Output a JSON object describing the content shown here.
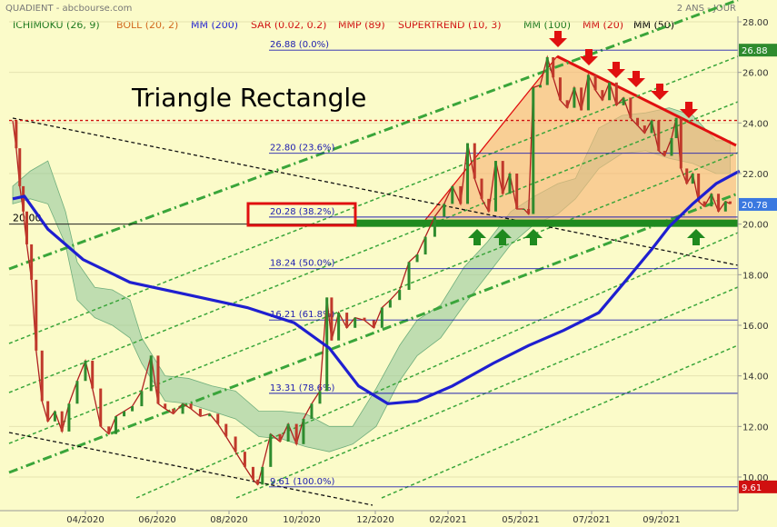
{
  "header": {
    "source": "QUADIENT - abcbourse.com",
    "period": "2 ANS - JOUR"
  },
  "indicators": [
    {
      "label": "ICHIMOKU (26, 9)",
      "color": "#1f7a1f"
    },
    {
      "label": "BOLL (20, 2)",
      "color": "#d2691e"
    },
    {
      "label": "MM (200)",
      "color": "#1f1fd0"
    },
    {
      "label": "SAR (0.02, 0.2)",
      "color": "#d01010"
    },
    {
      "label": "MMP (89)",
      "color": "#d01010"
    },
    {
      "label": "SUPERTREND (10, 3)",
      "color": "#d01010"
    },
    {
      "label": "MM (100)",
      "color": "#1f7a1f"
    },
    {
      "label": "MM (20)",
      "color": "#d01010"
    },
    {
      "label": "MM (50)",
      "color": "#000000"
    }
  ],
  "annotation_title": "Triangle Rectangle",
  "chart_data": {
    "type": "line",
    "x_ticks": [
      "04/2020",
      "06/2020",
      "08/2020",
      "10/2020",
      "12/2020",
      "02/2021",
      "05/2021",
      "07/2021",
      "09/2021"
    ],
    "y_ticks": [
      "10.00",
      "12.00",
      "14.00",
      "16.00",
      "18.00",
      "20.00",
      "22.00",
      "24.00",
      "26.00",
      "28.00"
    ],
    "ylim": [
      9.3,
      28.3
    ],
    "fibonacci_levels": [
      {
        "value": 26.88,
        "label": "26.88  (0.0%)"
      },
      {
        "value": 22.8,
        "label": "22.80  (23.6%)"
      },
      {
        "value": 20.28,
        "label": "20.28  (38.2%)"
      },
      {
        "value": 18.24,
        "label": "18.24  (50.0%)"
      },
      {
        "value": 16.21,
        "label": "16.21  (61.8%)"
      },
      {
        "value": 13.31,
        "label": "13.31  (78.6%)"
      },
      {
        "value": 9.61,
        "label": "9.61  (100.0%)"
      }
    ],
    "price_tags": [
      {
        "value": 26.88,
        "label": "26.88",
        "color": "#2e8b2e"
      },
      {
        "value": 20.78,
        "label": "20.78",
        "color": "#3a78e0"
      },
      {
        "value": 9.61,
        "label": "9.61",
        "color": "#d01010"
      }
    ],
    "support_level": {
      "value": 20.0,
      "label": "20.00"
    },
    "resistance_level": 24.1,
    "price_series": [
      [
        0,
        24.1
      ],
      [
        3,
        23.0
      ],
      [
        6,
        21.5
      ],
      [
        9,
        20.5
      ],
      [
        12,
        19.2
      ],
      [
        16,
        17.8
      ],
      [
        20,
        15.0
      ],
      [
        25,
        13.0
      ],
      [
        30,
        12.2
      ],
      [
        36,
        12.6
      ],
      [
        42,
        11.8
      ],
      [
        48,
        12.9
      ],
      [
        55,
        13.8
      ],
      [
        62,
        14.6
      ],
      [
        68,
        13.5
      ],
      [
        75,
        12.0
      ],
      [
        82,
        11.7
      ],
      [
        88,
        12.4
      ],
      [
        95,
        12.6
      ],
      [
        102,
        12.8
      ],
      [
        110,
        13.4
      ],
      [
        118,
        14.8
      ],
      [
        124,
        12.9
      ],
      [
        130,
        12.7
      ],
      [
        137,
        12.5
      ],
      [
        145,
        12.9
      ],
      [
        152,
        12.7
      ],
      [
        160,
        12.4
      ],
      [
        168,
        12.5
      ],
      [
        175,
        12.1
      ],
      [
        182,
        11.6
      ],
      [
        190,
        11.0
      ],
      [
        198,
        10.4
      ],
      [
        205,
        9.9
      ],
      [
        209,
        9.7
      ],
      [
        213,
        10.4
      ],
      [
        220,
        11.7
      ],
      [
        228,
        11.4
      ],
      [
        235,
        12.1
      ],
      [
        242,
        11.3
      ],
      [
        248,
        12.3
      ],
      [
        255,
        12.9
      ],
      [
        262,
        13.4
      ],
      [
        268,
        17.1
      ],
      [
        272,
        15.4
      ],
      [
        278,
        16.5
      ],
      [
        285,
        15.9
      ],
      [
        292,
        16.3
      ],
      [
        300,
        16.2
      ],
      [
        308,
        15.9
      ],
      [
        315,
        16.7
      ],
      [
        322,
        17.0
      ],
      [
        330,
        17.4
      ],
      [
        338,
        18.5
      ],
      [
        345,
        18.8
      ],
      [
        352,
        19.5
      ],
      [
        360,
        20.3
      ],
      [
        368,
        20.8
      ],
      [
        375,
        21.5
      ],
      [
        382,
        20.8
      ],
      [
        388,
        23.2
      ],
      [
        394,
        21.8
      ],
      [
        400,
        21.0
      ],
      [
        406,
        20.5
      ],
      [
        412,
        22.5
      ],
      [
        418,
        21.2
      ],
      [
        424,
        22.0
      ],
      [
        430,
        20.6
      ],
      [
        436,
        20.6
      ],
      [
        440,
        20.4
      ],
      [
        444,
        25.4
      ],
      [
        450,
        25.5
      ],
      [
        456,
        26.6
      ],
      [
        461,
        25.8
      ],
      [
        467,
        24.9
      ],
      [
        473,
        24.6
      ],
      [
        479,
        25.4
      ],
      [
        485,
        24.5
      ],
      [
        491,
        25.9
      ],
      [
        497,
        25.3
      ],
      [
        503,
        24.9
      ],
      [
        509,
        25.6
      ],
      [
        515,
        24.7
      ],
      [
        521,
        25.0
      ],
      [
        527,
        24.2
      ],
      [
        533,
        23.9
      ],
      [
        539,
        23.6
      ],
      [
        545,
        24.1
      ],
      [
        551,
        22.9
      ],
      [
        556,
        22.7
      ],
      [
        562,
        23.4
      ],
      [
        566,
        24.2
      ],
      [
        570,
        22.2
      ],
      [
        575,
        21.6
      ],
      [
        580,
        22.0
      ],
      [
        585,
        20.9
      ],
      [
        590,
        20.7
      ],
      [
        596,
        21.2
      ],
      [
        602,
        20.5
      ],
      [
        608,
        20.9
      ],
      [
        612,
        20.8
      ]
    ],
    "ma200": [
      [
        0,
        21.0
      ],
      [
        10,
        21.1
      ],
      [
        30,
        19.8
      ],
      [
        60,
        18.6
      ],
      [
        100,
        17.7
      ],
      [
        150,
        17.2
      ],
      [
        200,
        16.7
      ],
      [
        240,
        16.1
      ],
      [
        270,
        15.1
      ],
      [
        295,
        13.6
      ],
      [
        320,
        12.9
      ],
      [
        345,
        13.0
      ],
      [
        375,
        13.6
      ],
      [
        410,
        14.5
      ],
      [
        440,
        15.2
      ],
      [
        470,
        15.8
      ],
      [
        500,
        16.5
      ],
      [
        520,
        17.6
      ],
      [
        545,
        19.0
      ],
      [
        560,
        19.9
      ],
      [
        580,
        20.8
      ],
      [
        600,
        21.6
      ],
      [
        620,
        22.1
      ]
    ],
    "ichimoku_cloud_upper": [
      [
        0,
        21.5
      ],
      [
        15,
        22.1
      ],
      [
        30,
        22.5
      ],
      [
        45,
        20.5
      ],
      [
        55,
        18.5
      ],
      [
        70,
        17.5
      ],
      [
        85,
        17.4
      ],
      [
        100,
        17.0
      ],
      [
        110,
        15.5
      ],
      [
        130,
        14.0
      ],
      [
        150,
        13.9
      ],
      [
        170,
        13.6
      ],
      [
        190,
        13.4
      ],
      [
        210,
        12.6
      ],
      [
        230,
        12.6
      ],
      [
        250,
        12.5
      ],
      [
        270,
        12.0
      ],
      [
        290,
        12.0
      ],
      [
        310,
        13.5
      ],
      [
        330,
        15.2
      ],
      [
        345,
        16.2
      ],
      [
        365,
        16.8
      ],
      [
        385,
        18.3
      ],
      [
        405,
        19.3
      ],
      [
        425,
        20.5
      ],
      [
        445,
        21.1
      ],
      [
        465,
        21.6
      ],
      [
        480,
        21.8
      ],
      [
        500,
        23.8
      ],
      [
        520,
        24.3
      ],
      [
        540,
        24.4
      ],
      [
        560,
        24.6
      ],
      [
        580,
        24.3
      ],
      [
        600,
        23.3
      ],
      [
        612,
        23.3
      ]
    ],
    "ichimoku_cloud_lower": [
      [
        0,
        20.8
      ],
      [
        15,
        21.0
      ],
      [
        30,
        20.8
      ],
      [
        45,
        19.2
      ],
      [
        55,
        17.0
      ],
      [
        70,
        16.3
      ],
      [
        85,
        16.0
      ],
      [
        100,
        15.5
      ],
      [
        110,
        14.5
      ],
      [
        130,
        13.0
      ],
      [
        150,
        12.9
      ],
      [
        170,
        12.6
      ],
      [
        190,
        12.3
      ],
      [
        210,
        11.6
      ],
      [
        230,
        11.5
      ],
      [
        250,
        11.2
      ],
      [
        270,
        11.0
      ],
      [
        290,
        11.3
      ],
      [
        310,
        12.0
      ],
      [
        330,
        13.8
      ],
      [
        345,
        14.8
      ],
      [
        365,
        15.5
      ],
      [
        385,
        16.8
      ],
      [
        405,
        18.0
      ],
      [
        425,
        19.2
      ],
      [
        445,
        20.0
      ],
      [
        465,
        20.4
      ],
      [
        480,
        21.0
      ],
      [
        500,
        22.2
      ],
      [
        520,
        22.8
      ],
      [
        540,
        22.9
      ],
      [
        560,
        22.6
      ],
      [
        580,
        22.4
      ],
      [
        600,
        22.0
      ],
      [
        612,
        22.0
      ]
    ]
  }
}
